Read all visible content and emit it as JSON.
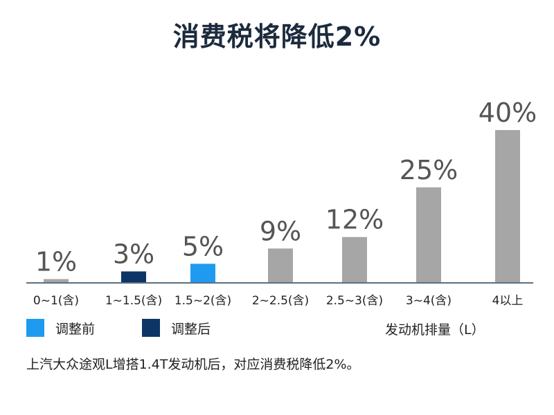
{
  "title": "消费税将降低2%",
  "legend": {
    "before": {
      "label": "调整前",
      "color": "#1e9bf0"
    },
    "after": {
      "label": "调整后",
      "color": "#0d3566"
    }
  },
  "axis_title": "发动机排量（L）",
  "footnote": "上汽大众途观L增搭1.4T发动机后，对应消费税降低2%。",
  "colors": {
    "unchanged": "#a6a6a6",
    "axis": "#5a6e80",
    "value_label": "#555555"
  },
  "chart_data": {
    "type": "bar",
    "title": "消费税将降低2%",
    "xlabel": "发动机排量（L）",
    "ylabel": "",
    "categories": [
      "0~1(含)",
      "1~1.5(含)",
      "1.5~2(含)",
      "2~2.5(含)",
      "2.5~3(含)",
      "3~4(含)",
      "4以上"
    ],
    "values": [
      1,
      3,
      5,
      9,
      12,
      25,
      40
    ],
    "value_labels": [
      "1%",
      "3%",
      "5%",
      "9%",
      "12%",
      "25%",
      "40%"
    ],
    "bar_colors": [
      "#a6a6a6",
      "#0d3566",
      "#1e9bf0",
      "#a6a6a6",
      "#a6a6a6",
      "#a6a6a6",
      "#a6a6a6"
    ],
    "ylim": [
      0,
      40
    ],
    "grid": false
  }
}
